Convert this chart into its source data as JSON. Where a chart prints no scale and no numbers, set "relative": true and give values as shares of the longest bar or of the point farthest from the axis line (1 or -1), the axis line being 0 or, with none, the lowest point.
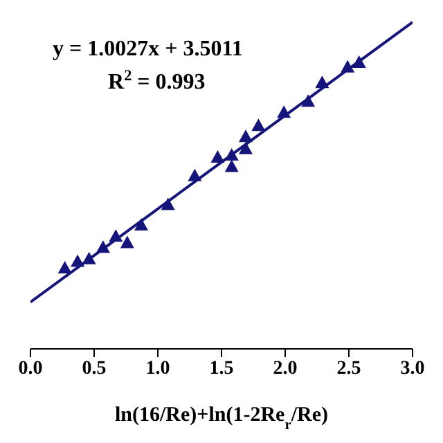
{
  "chart_data": {
    "type": "scatter",
    "relative": true,
    "xlabel": "ln(16/Re)+ln(1-2Re$_{r}$/Re)",
    "annotations": [
      "y = 1.0027x + 3.5011",
      "R$^{2}$ = 0.993"
    ],
    "xlim": [
      0,
      3
    ],
    "xticks": [
      {
        "value": 0,
        "label": "0.0"
      },
      0.5,
      {
        "value": 1,
        "label": "1.0"
      },
      1.5,
      {
        "value": 2,
        "label": "2.0"
      },
      2.5,
      {
        "value": 3,
        "label": "3.0"
      }
    ],
    "grid": false,
    "legend": false,
    "series": [
      {
        "marker": "triangle",
        "color": "#14147a",
        "x": [
          0.27,
          0.37,
          0.46,
          0.57,
          0.67,
          0.76,
          0.87,
          1.08,
          1.29,
          1.47,
          1.58,
          1.58,
          1.69,
          1.69,
          1.79,
          1.99,
          2.18,
          2.29,
          2.49,
          2.58
        ],
        "values": [
          0.248,
          0.268,
          0.276,
          0.311,
          0.345,
          0.325,
          0.379,
          0.442,
          0.53,
          0.587,
          0.593,
          0.558,
          0.613,
          0.65,
          0.684,
          0.724,
          0.758,
          0.815,
          0.863,
          0.877
        ]
      },
      {
        "type": "line",
        "marker": "none",
        "color": "#14147a",
        "x": [
          0,
          3
        ],
        "values": [
          0.143,
          1.0
        ]
      }
    ]
  }
}
